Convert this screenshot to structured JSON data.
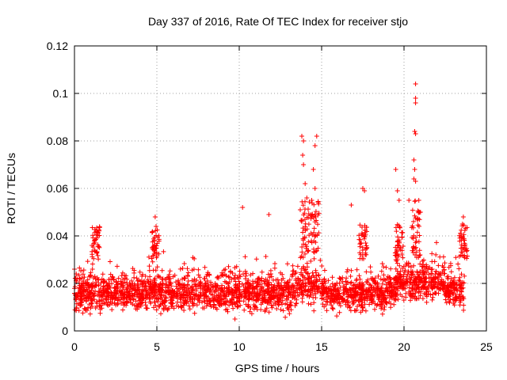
{
  "chart_data": {
    "type": "scatter",
    "title": "Day 337 of 2016, Rate Of TEC Index for receiver stjo",
    "xlabel": "GPS time / hours",
    "ylabel": "ROTI / TECUs",
    "xlim": [
      0,
      25
    ],
    "ylim": [
      0,
      0.12
    ],
    "xticks": [
      "0",
      "5",
      "10",
      "15",
      "20",
      "25"
    ],
    "yticks": [
      "0",
      "0.02",
      "0.04",
      "0.06",
      "0.08",
      "0.1",
      "0.12"
    ],
    "grid": true,
    "marker": "+",
    "color": "#ff0000",
    "series": [
      {
        "name": "ROTI",
        "description": "dense band of points from 0 to 23.7 h, mostly 0.005-0.035 TECU, with spikes",
        "notable_points": [
          {
            "x": 0.0,
            "y": 0.026
          },
          {
            "x": 1.3,
            "y": 0.042
          },
          {
            "x": 4.9,
            "y": 0.048
          },
          {
            "x": 4.95,
            "y": 0.044
          },
          {
            "x": 10.2,
            "y": 0.052
          },
          {
            "x": 11.8,
            "y": 0.049
          },
          {
            "x": 13.8,
            "y": 0.082
          },
          {
            "x": 13.9,
            "y": 0.08
          },
          {
            "x": 13.85,
            "y": 0.074
          },
          {
            "x": 13.9,
            "y": 0.07
          },
          {
            "x": 14.0,
            "y": 0.062
          },
          {
            "x": 14.1,
            "y": 0.056
          },
          {
            "x": 13.7,
            "y": 0.051
          },
          {
            "x": 14.7,
            "y": 0.082
          },
          {
            "x": 14.6,
            "y": 0.078
          },
          {
            "x": 14.5,
            "y": 0.068
          },
          {
            "x": 14.6,
            "y": 0.06
          },
          {
            "x": 14.4,
            "y": 0.055
          },
          {
            "x": 16.8,
            "y": 0.053
          },
          {
            "x": 17.5,
            "y": 0.06
          },
          {
            "x": 17.6,
            "y": 0.059
          },
          {
            "x": 19.5,
            "y": 0.068
          },
          {
            "x": 19.6,
            "y": 0.059
          },
          {
            "x": 19.7,
            "y": 0.055
          },
          {
            "x": 20.7,
            "y": 0.104
          },
          {
            "x": 20.7,
            "y": 0.098
          },
          {
            "x": 20.7,
            "y": 0.096
          },
          {
            "x": 20.65,
            "y": 0.084
          },
          {
            "x": 20.7,
            "y": 0.083
          },
          {
            "x": 20.6,
            "y": 0.072
          },
          {
            "x": 20.65,
            "y": 0.068
          },
          {
            "x": 20.6,
            "y": 0.064
          },
          {
            "x": 20.7,
            "y": 0.063
          },
          {
            "x": 20.3,
            "y": 0.055
          },
          {
            "x": 20.9,
            "y": 0.055
          },
          {
            "x": 21.0,
            "y": 0.05
          },
          {
            "x": 23.6,
            "y": 0.048
          },
          {
            "x": 23.55,
            "y": 0.045
          }
        ]
      }
    ]
  }
}
